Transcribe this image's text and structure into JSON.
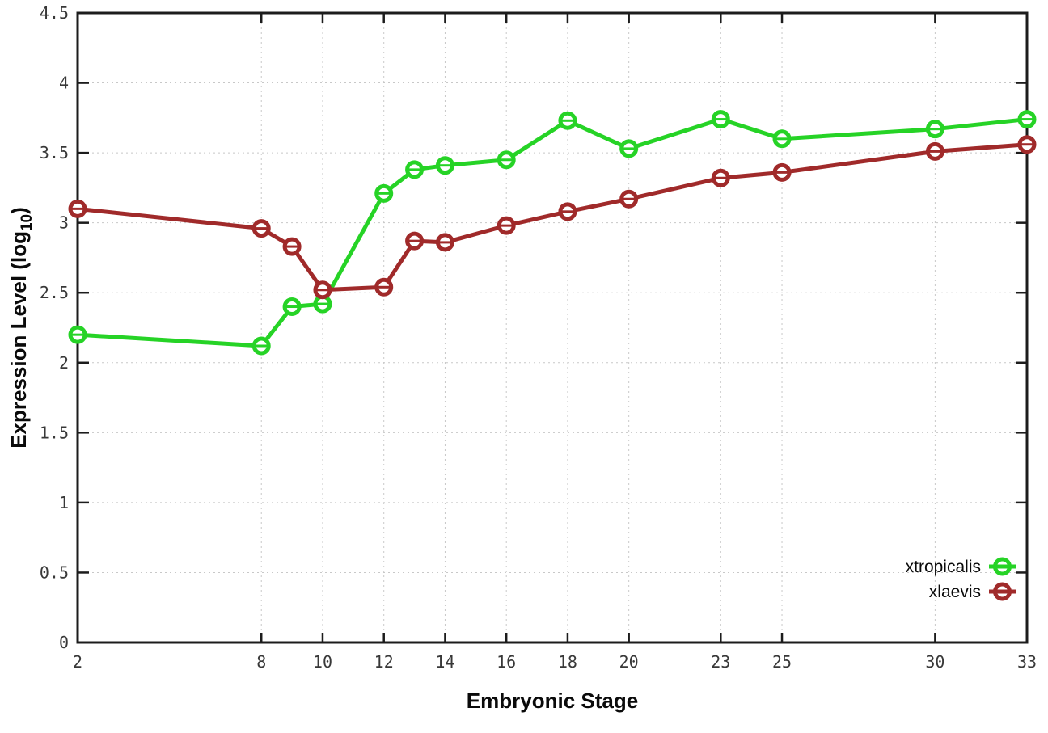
{
  "chart_data": {
    "type": "line",
    "title": "",
    "xlabel": "Embryonic Stage",
    "ylabel_parts": {
      "pre": "Expression Level (log",
      "sub": "10",
      "post": ")"
    },
    "xlim": [
      2,
      33
    ],
    "ylim": [
      0,
      4.5
    ],
    "x_ticks": [
      2,
      8,
      10,
      12,
      14,
      16,
      18,
      20,
      23,
      25,
      30,
      33
    ],
    "x_tick_labels": [
      "2",
      "8",
      "10",
      "12",
      "14",
      "16",
      "18",
      "20",
      "23",
      "25",
      "30",
      "33"
    ],
    "y_ticks": [
      0,
      0.5,
      1,
      1.5,
      2,
      2.5,
      3,
      3.5,
      4,
      4.5
    ],
    "y_tick_labels": [
      "0",
      "0.5",
      "1",
      "1.5",
      "2",
      "2.5",
      "3",
      "3.5",
      "4",
      "4.5"
    ],
    "grid": true,
    "legend_position": "bottom-right",
    "marker": "open-circle-with-errorbar-cap",
    "x": [
      2,
      8,
      9,
      10,
      12,
      13,
      14,
      16,
      18,
      20,
      23,
      25,
      30,
      33
    ],
    "series": [
      {
        "name": "xtropicalis",
        "color": "#26d326",
        "values": [
          2.2,
          2.12,
          2.4,
          2.42,
          3.21,
          3.38,
          3.41,
          3.45,
          3.73,
          3.53,
          3.74,
          3.6,
          3.67,
          3.74
        ]
      },
      {
        "name": "xlaevis",
        "color": "#a02a2a",
        "values": [
          3.1,
          2.96,
          2.83,
          2.52,
          2.54,
          2.87,
          2.86,
          2.98,
          3.08,
          3.17,
          3.32,
          3.36,
          3.51,
          3.56
        ]
      }
    ],
    "colors": {
      "grid": "#c8c8c8",
      "border": "#1c1c1c",
      "tick_text": "#383838",
      "background": "#ffffff"
    }
  }
}
